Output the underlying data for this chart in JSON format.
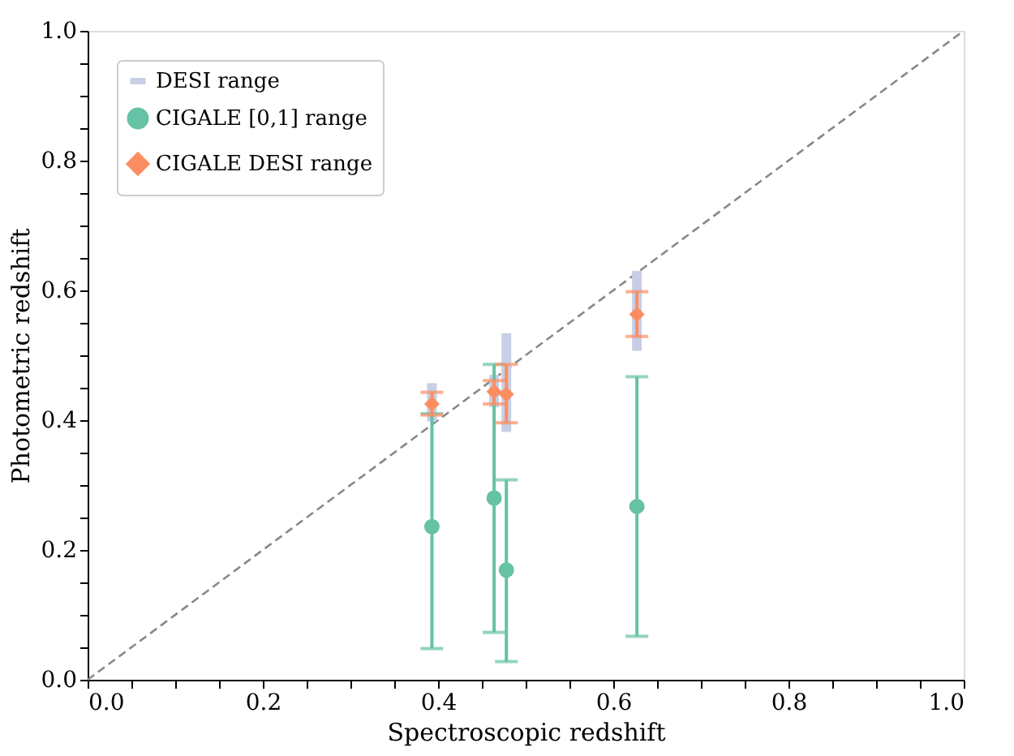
{
  "chart_data": {
    "type": "scatter",
    "xlabel": "Spectroscopic redshift",
    "ylabel": "Photometric redshift",
    "xlim": [
      0,
      1
    ],
    "ylim": [
      0,
      1
    ],
    "xticks": [
      {
        "value": 0,
        "label": "0.0"
      },
      {
        "value": 0.05,
        "label": null
      },
      {
        "value": 0.1,
        "label": null
      },
      {
        "value": 0.15,
        "label": null
      },
      {
        "value": 0.2,
        "label": "0.2"
      },
      {
        "value": 0.25,
        "label": null
      },
      {
        "value": 0.3,
        "label": null
      },
      {
        "value": 0.35,
        "label": null
      },
      {
        "value": 0.4,
        "label": "0.4"
      },
      {
        "value": 0.45,
        "label": null
      },
      {
        "value": 0.5,
        "label": null
      },
      {
        "value": 0.55,
        "label": null
      },
      {
        "value": 0.6,
        "label": "0.6"
      },
      {
        "value": 0.65,
        "label": null
      },
      {
        "value": 0.7,
        "label": null
      },
      {
        "value": 0.75,
        "label": null
      },
      {
        "value": 0.8,
        "label": "0.8"
      },
      {
        "value": 0.85,
        "label": null
      },
      {
        "value": 0.9,
        "label": null
      },
      {
        "value": 0.95,
        "label": null
      },
      {
        "value": 1,
        "label": "1.0"
      }
    ],
    "yticks": [
      {
        "value": 0,
        "label": "0.0"
      },
      {
        "value": 0.05,
        "label": null
      },
      {
        "value": 0.1,
        "label": null
      },
      {
        "value": 0.15,
        "label": null
      },
      {
        "value": 0.2,
        "label": "0.2"
      },
      {
        "value": 0.25,
        "label": null
      },
      {
        "value": 0.3,
        "label": null
      },
      {
        "value": 0.35,
        "label": null
      },
      {
        "value": 0.4,
        "label": "0.4"
      },
      {
        "value": 0.45,
        "label": null
      },
      {
        "value": 0.5,
        "label": null
      },
      {
        "value": 0.55,
        "label": null
      },
      {
        "value": 0.6,
        "label": "0.6"
      },
      {
        "value": 0.65,
        "label": null
      },
      {
        "value": 0.7,
        "label": null
      },
      {
        "value": 0.75,
        "label": null
      },
      {
        "value": 0.8,
        "label": "0.8"
      },
      {
        "value": 0.85,
        "label": null
      },
      {
        "value": 0.9,
        "label": null
      },
      {
        "value": 0.95,
        "label": null
      },
      {
        "value": 1,
        "label": "1.0"
      }
    ],
    "grid": false,
    "legend": "top left",
    "series": [
      {
        "type": "line",
        "color": "#888888",
        "line_style": "dashed",
        "marker": "none",
        "x": [
          0,
          1
        ],
        "values": [
          0,
          1
        ]
      },
      {
        "type": "bar",
        "name": "DESI range",
        "color": "#c6cfe5",
        "x": [
          0.393,
          0.464,
          0.478,
          0.627
        ],
        "base": [
          0.398,
          0.42,
          0.382,
          0.507
        ],
        "values": [
          0.059,
          0.05,
          0.152,
          0.123
        ]
      },
      {
        "name": "CIGALE [0,1] range",
        "color": "#66c2a5",
        "marker": "circle",
        "x": [
          0.393,
          0.464,
          0.478,
          0.627
        ],
        "values": [
          0.236,
          0.28,
          0.169,
          0.267
        ],
        "errors": [
          [
            0.048,
            0.41
          ],
          [
            0.073,
            0.486
          ],
          [
            0.028,
            0.308
          ],
          [
            0.067,
            0.467
          ]
        ]
      },
      {
        "name": "CIGALE DESI range",
        "color": "#fc8d62",
        "marker": "diamond",
        "x": [
          0.393,
          0.464,
          0.478,
          0.627
        ],
        "values": [
          0.425,
          0.444,
          0.44,
          0.563
        ],
        "errors": [
          [
            0.408,
            0.443
          ],
          [
            0.425,
            0.461
          ],
          [
            0.396,
            0.486
          ],
          [
            0.529,
            0.598
          ]
        ]
      }
    ]
  }
}
